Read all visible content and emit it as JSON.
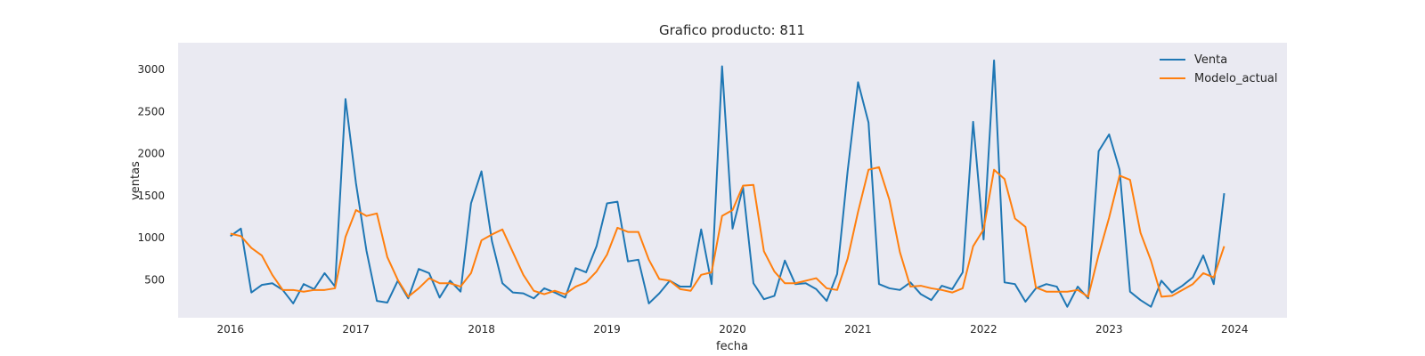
{
  "chart_data": {
    "type": "line",
    "title": "Grafico producto: 811",
    "xlabel": "fecha",
    "ylabel": "ventas",
    "x_ticks": [
      "2016",
      "2017",
      "2018",
      "2019",
      "2020",
      "2021",
      "2022",
      "2023",
      "2024"
    ],
    "y_ticks": [
      "500",
      "1000",
      "1500",
      "2000",
      "2500",
      "3000"
    ],
    "xlim": [
      "2015-08-01",
      "2024-06-01"
    ],
    "ylim": [
      50,
      3320
    ],
    "grid": false,
    "legend_position": "top-right",
    "x": [
      "2016-01",
      "2016-02",
      "2016-03",
      "2016-04",
      "2016-05",
      "2016-06",
      "2016-07",
      "2016-08",
      "2016-09",
      "2016-10",
      "2016-11",
      "2016-12",
      "2017-01",
      "2017-02",
      "2017-03",
      "2017-04",
      "2017-05",
      "2017-06",
      "2017-07",
      "2017-08",
      "2017-09",
      "2017-10",
      "2017-11",
      "2017-12",
      "2018-01",
      "2018-02",
      "2018-03",
      "2018-04",
      "2018-05",
      "2018-06",
      "2018-07",
      "2018-08",
      "2018-09",
      "2018-10",
      "2018-11",
      "2018-12",
      "2019-01",
      "2019-02",
      "2019-03",
      "2019-04",
      "2019-05",
      "2019-06",
      "2019-07",
      "2019-08",
      "2019-09",
      "2019-10",
      "2019-11",
      "2019-12",
      "2020-01",
      "2020-02",
      "2020-03",
      "2020-04",
      "2020-05",
      "2020-06",
      "2020-07",
      "2020-08",
      "2020-09",
      "2020-10",
      "2020-11",
      "2020-12",
      "2021-01",
      "2021-02",
      "2021-03",
      "2021-04",
      "2021-05",
      "2021-06",
      "2021-07",
      "2021-08",
      "2021-09",
      "2021-10",
      "2021-11",
      "2021-12",
      "2022-01",
      "2022-02",
      "2022-03",
      "2022-04",
      "2022-05",
      "2022-06",
      "2022-07",
      "2022-08",
      "2022-09",
      "2022-10",
      "2022-11",
      "2022-12",
      "2023-01",
      "2023-02",
      "2023-03",
      "2023-04",
      "2023-05",
      "2023-06",
      "2023-07",
      "2023-08",
      "2023-09",
      "2023-10",
      "2023-11",
      "2023-12"
    ],
    "series": [
      {
        "name": "Venta",
        "color": "#1f77b4",
        "values": [
          1020,
          1110,
          350,
          440,
          460,
          380,
          220,
          450,
          390,
          580,
          420,
          2650,
          1650,
          850,
          250,
          230,
          490,
          280,
          630,
          580,
          290,
          490,
          360,
          1410,
          1790,
          960,
          460,
          350,
          340,
          280,
          400,
          350,
          290,
          640,
          590,
          900,
          1410,
          1430,
          720,
          740,
          220,
          340,
          490,
          420,
          420,
          1100,
          450,
          3040,
          1110,
          1600,
          460,
          270,
          310,
          730,
          450,
          460,
          390,
          250,
          570,
          1790,
          2850,
          2370,
          450,
          400,
          380,
          470,
          330,
          260,
          430,
          390,
          590,
          2380,
          980,
          3110,
          470,
          450,
          240,
          400,
          450,
          420,
          180,
          420,
          280,
          2030,
          2230,
          1810,
          360,
          260,
          180,
          490,
          350,
          430,
          530,
          790,
          450,
          1530
        ]
      },
      {
        "name": "Modelo_actual",
        "color": "#ff7f0e",
        "values": [
          1050,
          1020,
          880,
          790,
          560,
          380,
          380,
          360,
          380,
          380,
          400,
          1010,
          1330,
          1260,
          1290,
          770,
          500,
          300,
          400,
          520,
          460,
          460,
          420,
          580,
          970,
          1040,
          1100,
          830,
          560,
          370,
          330,
          370,
          330,
          420,
          470,
          600,
          800,
          1120,
          1070,
          1070,
          740,
          510,
          490,
          390,
          370,
          560,
          590,
          1260,
          1330,
          1620,
          1630,
          840,
          600,
          460,
          460,
          490,
          520,
          400,
          380,
          750,
          1310,
          1810,
          1840,
          1450,
          830,
          420,
          430,
          400,
          380,
          350,
          400,
          900,
          1100,
          1810,
          1700,
          1230,
          1130,
          410,
          360,
          360,
          360,
          380,
          300,
          800,
          1240,
          1740,
          1690,
          1060,
          730,
          300,
          310,
          380,
          450,
          580,
          530,
          900
        ]
      }
    ]
  }
}
